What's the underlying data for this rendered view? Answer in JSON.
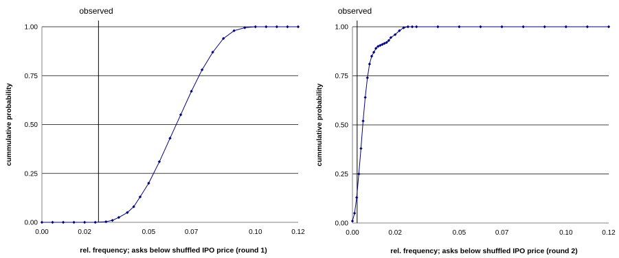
{
  "chart_data": [
    {
      "type": "line",
      "title": "",
      "xlabel": "rel. frequency; asks below shuffled IPO price (round 1)",
      "ylabel": "cummulative probability",
      "xlim": [
        0,
        0.12
      ],
      "ylim": [
        0,
        1
      ],
      "x_ticks": [
        0.0,
        0.02,
        0.05,
        0.07,
        0.1,
        0.12
      ],
      "x_tick_labels": [
        "0.00",
        "0.02",
        "0.05",
        "0.07",
        "0.10",
        "0.12"
      ],
      "y_ticks": [
        0,
        0.25,
        0.5,
        0.75,
        1.0
      ],
      "y_tick_labels": [
        "0.00",
        "0.25",
        "0.50",
        "0.75",
        "1.00"
      ],
      "grid": "horizontal",
      "legend": "none",
      "marker": "diamond",
      "line_color": "#000080",
      "observed": {
        "label": "observed",
        "x": 0.0265
      },
      "series": [
        {
          "x": [
            0.0,
            0.005,
            0.01,
            0.015,
            0.02,
            0.025,
            0.03,
            0.033,
            0.036,
            0.04,
            0.043,
            0.046,
            0.05,
            0.055,
            0.06,
            0.065,
            0.07,
            0.075,
            0.08,
            0.085,
            0.09,
            0.095,
            0.1,
            0.105,
            0.11,
            0.115,
            0.12
          ],
          "y": [
            0.0,
            0.0,
            0.0,
            0.0,
            0.0,
            0.0,
            0.003,
            0.01,
            0.025,
            0.05,
            0.08,
            0.13,
            0.2,
            0.31,
            0.43,
            0.55,
            0.67,
            0.78,
            0.87,
            0.94,
            0.98,
            0.995,
            1.0,
            1.0,
            1.0,
            1.0,
            1.0
          ]
        }
      ]
    },
    {
      "type": "line",
      "title": "",
      "xlabel": "rel. frequency; asks below shuffled IPO price (round 2)",
      "ylabel": "cummulative probability",
      "xlim": [
        0,
        0.12
      ],
      "ylim": [
        0,
        1
      ],
      "x_ticks": [
        0.0,
        0.02,
        0.05,
        0.07,
        0.1,
        0.12
      ],
      "x_tick_labels": [
        "0.00",
        "0.02",
        "0.05",
        "0.07",
        "0.10",
        "0.12"
      ],
      "y_ticks": [
        0,
        0.25,
        0.5,
        0.75,
        1.0
      ],
      "y_tick_labels": [
        "0.00",
        "0.25",
        "0.50",
        "0.75",
        "1.00"
      ],
      "grid": "horizontal",
      "legend": "none",
      "marker": "diamond",
      "line_color": "#000080",
      "observed": {
        "label": "observed",
        "x": 0.0022
      },
      "series": [
        {
          "x": [
            0.0,
            0.001,
            0.002,
            0.003,
            0.004,
            0.005,
            0.006,
            0.007,
            0.008,
            0.009,
            0.01,
            0.011,
            0.012,
            0.013,
            0.014,
            0.015,
            0.016,
            0.017,
            0.018,
            0.02,
            0.022,
            0.024,
            0.026,
            0.028,
            0.03,
            0.04,
            0.05,
            0.06,
            0.07,
            0.08,
            0.09,
            0.1,
            0.11,
            0.12
          ],
          "y": [
            0.01,
            0.05,
            0.13,
            0.25,
            0.38,
            0.52,
            0.64,
            0.74,
            0.81,
            0.85,
            0.87,
            0.89,
            0.9,
            0.905,
            0.91,
            0.915,
            0.92,
            0.93,
            0.945,
            0.96,
            0.98,
            0.995,
            1.0,
            1.0,
            1.0,
            1.0,
            1.0,
            1.0,
            1.0,
            1.0,
            1.0,
            1.0,
            1.0,
            1.0
          ]
        }
      ]
    }
  ]
}
